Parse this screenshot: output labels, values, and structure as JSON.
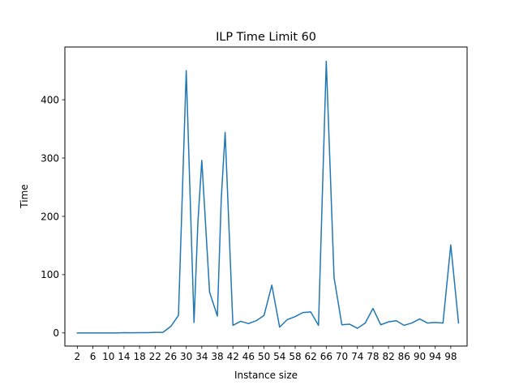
{
  "chart_data": {
    "type": "line",
    "title": "ILP Time Limit 60",
    "xlabel": "Instance size",
    "ylabel": "Time",
    "xlim": [
      -1.2,
      102.2
    ],
    "ylim": [
      -22.5,
      490.5
    ],
    "x_ticks": [
      2,
      6,
      10,
      14,
      18,
      22,
      26,
      30,
      34,
      38,
      42,
      46,
      50,
      54,
      58,
      62,
      66,
      70,
      74,
      78,
      82,
      86,
      90,
      94,
      98
    ],
    "y_ticks": [
      0,
      100,
      200,
      300,
      400
    ],
    "grid": false,
    "color": "#1f77b4",
    "series": [
      {
        "x": [
          2,
          4,
          6,
          8,
          10,
          12,
          14,
          16,
          18,
          20,
          22,
          24,
          26,
          28,
          30,
          32,
          33,
          34,
          36,
          38,
          39,
          40,
          42,
          44,
          46,
          48,
          50,
          52,
          54,
          56,
          58,
          60,
          62,
          64,
          66,
          68,
          70,
          72,
          74,
          76,
          78,
          80,
          82,
          84,
          86,
          88,
          90,
          92,
          94,
          96,
          98,
          100
        ],
        "y": [
          0,
          0,
          0,
          0,
          0,
          0,
          0.5,
          0.3,
          0.4,
          0.5,
          1,
          1,
          11,
          30,
          450,
          18,
          190,
          296,
          70,
          29,
          230,
          344,
          13,
          20,
          16,
          21,
          30,
          82,
          10,
          23,
          28,
          35,
          36,
          13,
          466,
          95,
          14,
          15,
          8,
          17,
          42,
          14,
          19,
          21,
          13,
          17,
          24,
          17,
          18,
          17,
          151,
          17
        ]
      }
    ]
  }
}
